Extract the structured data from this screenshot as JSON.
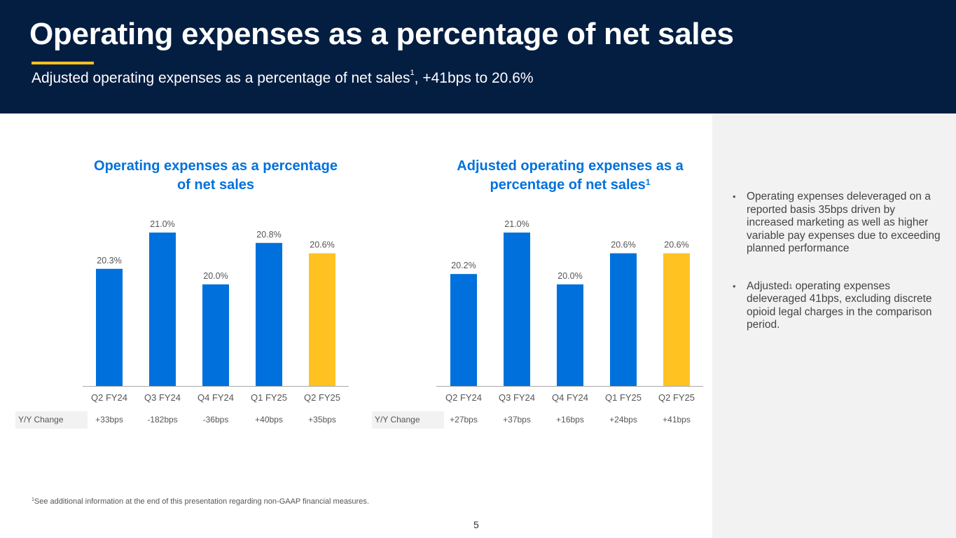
{
  "header": {
    "title": "Operating expenses as a percentage of net sales",
    "subtitle_main": "Adjusted operating expenses as a percentage of net sales",
    "subtitle_sup": "1",
    "subtitle_tail": ", +41bps to 20.6%"
  },
  "colors": {
    "header_bg": "#041e42",
    "accent_yellow": "#ffc220",
    "bar_blue": "#0071dc",
    "title_blue": "#0071dc"
  },
  "chart_data": [
    {
      "type": "bar",
      "title": "Operating expenses as a percentage of net sales",
      "title_line1": "Operating expenses as a percentage",
      "title_line2": "of net sales",
      "title_sup": "",
      "categories": [
        "Q2 FY24",
        "Q3 FY24",
        "Q4 FY24",
        "Q1 FY25",
        "Q2 FY25"
      ],
      "values": [
        20.3,
        21.0,
        20.0,
        20.8,
        20.6
      ],
      "data_labels": [
        "20.3%",
        "21.0%",
        "20.0%",
        "20.8%",
        "20.6%"
      ],
      "highlight_index": 4,
      "xlabel": "",
      "ylabel": "",
      "ylim": [
        18.04,
        21.0
      ],
      "grid": false,
      "yoy_label": "Y/Y Change",
      "yoy_values": [
        "+33bps",
        "-182bps",
        "-36bps",
        "+40bps",
        "+35bps"
      ]
    },
    {
      "type": "bar",
      "title": "Adjusted operating expenses as a percentage of net sales",
      "title_line1": "Adjusted operating expenses as a",
      "title_line2": "percentage of net sales",
      "title_sup": "1",
      "categories": [
        "Q2 FY24",
        "Q3 FY24",
        "Q4 FY24",
        "Q1 FY25",
        "Q2 FY25"
      ],
      "values": [
        20.2,
        21.0,
        20.0,
        20.6,
        20.6
      ],
      "data_labels": [
        "20.2%",
        "21.0%",
        "20.0%",
        "20.6%",
        "20.6%"
      ],
      "highlight_index": 4,
      "xlabel": "",
      "ylabel": "",
      "ylim": [
        18.04,
        21.0
      ],
      "grid": false,
      "yoy_label": "Y/Y Change",
      "yoy_values": [
        "+27bps",
        "+37bps",
        "+16bps",
        "+24bps",
        "+41bps"
      ]
    }
  ],
  "side_panel": {
    "bullets": [
      {
        "pre": "Operating expenses deleveraged on a reported basis 35bps driven by increased marketing as well as higher variable pay expenses due to exceeding planned performance",
        "sup": "",
        "post": ""
      },
      {
        "pre": "Adjusted",
        "sup": "1",
        "post": " operating expenses deleveraged 41bps, excluding discrete opioid legal charges in the comparison period."
      }
    ]
  },
  "footer": {
    "footnote_sup": "1",
    "footnote": "See additional information at the end of this presentation regarding non-GAAP financial measures.",
    "page_number": "5"
  }
}
